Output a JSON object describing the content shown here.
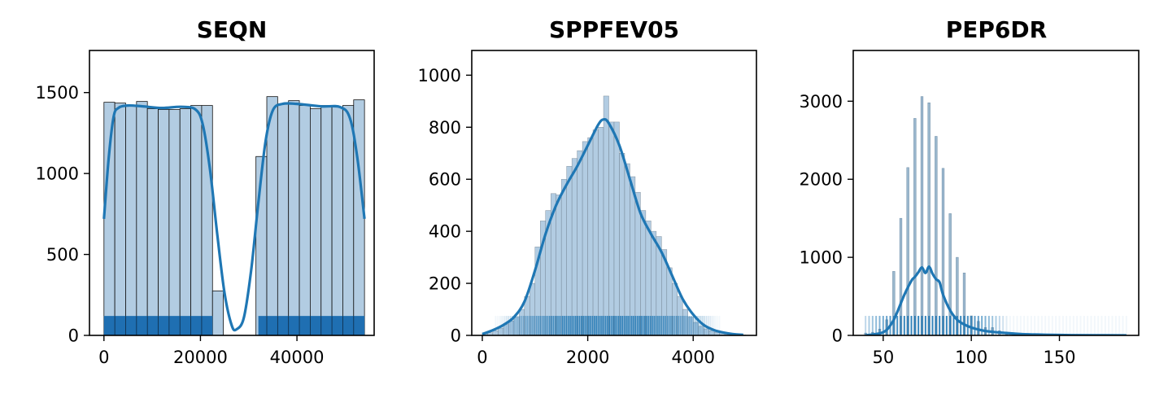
{
  "figure": {
    "panels": [
      {
        "title": "SEQN"
      },
      {
        "title": "SPPFEV05"
      },
      {
        "title": "PEP6DR"
      }
    ]
  },
  "chart_data": [
    {
      "type": "bar",
      "title": "SEQN",
      "subtype": "histogram with kde and rug",
      "xlim": [
        -3000,
        56000
      ],
      "ylim": [
        0,
        1760
      ],
      "x_ticks": [
        0,
        20000,
        40000
      ],
      "y_ticks": [
        0,
        500,
        1000,
        1500
      ],
      "bin_edges": [
        0,
        2250,
        4500,
        6750,
        9000,
        11250,
        13500,
        15750,
        18000,
        20250,
        22500,
        24750,
        27000,
        29250,
        31500,
        33750,
        36000,
        38250,
        40500,
        42750,
        45000,
        47250,
        49500,
        51750,
        54000
      ],
      "counts": [
        1440,
        1435,
        1415,
        1445,
        1400,
        1395,
        1395,
        1400,
        1420,
        1420,
        275,
        0,
        0,
        0,
        1105,
        1475,
        1430,
        1450,
        1420,
        1400,
        1420,
        1410,
        1420,
        1455
      ],
      "kde": {
        "x": [
          0,
          1000,
          2000,
          3000,
          5000,
          8000,
          12000,
          16000,
          19000,
          20500,
          22000,
          23500,
          25000,
          26500,
          27500,
          29000,
          30500,
          32000,
          33500,
          35000,
          37000,
          40000,
          45000,
          49000,
          51000,
          52500,
          54000
        ],
        "y": [
          720,
          1100,
          1350,
          1405,
          1420,
          1415,
          1405,
          1412,
          1395,
          1300,
          1020,
          620,
          260,
          60,
          38,
          110,
          400,
          820,
          1200,
          1390,
          1430,
          1430,
          1415,
          1410,
          1340,
          1100,
          720
        ]
      },
      "rug": {
        "segments": [
          [
            0,
            22500
          ],
          [
            32000,
            54000
          ]
        ],
        "height": 120
      },
      "colors": {
        "bar": "#b2cce2",
        "kde": "#1f77b4",
        "rug": "#1f6fb2"
      }
    },
    {
      "type": "bar",
      "title": "SPPFEV05",
      "subtype": "histogram with kde and rug",
      "xlim": [
        -200,
        5200
      ],
      "ylim": [
        0,
        1095
      ],
      "x_ticks": [
        0,
        2000,
        4000
      ],
      "y_ticks": [
        0,
        200,
        400,
        600,
        800,
        1000
      ],
      "bin_edges": [
        0,
        100,
        200,
        300,
        400,
        500,
        600,
        700,
        800,
        900,
        1000,
        1100,
        1200,
        1300,
        1400,
        1500,
        1600,
        1700,
        1800,
        1900,
        2000,
        2100,
        2200,
        2300,
        2400,
        2500,
        2600,
        2700,
        2800,
        2900,
        3000,
        3100,
        3200,
        3300,
        3400,
        3500,
        3600,
        3700,
        3800,
        3900,
        4000,
        4100,
        4200,
        4300,
        4400,
        4500,
        4600,
        4700,
        4800,
        4900
      ],
      "counts": [
        6,
        10,
        18,
        28,
        42,
        55,
        70,
        100,
        150,
        200,
        340,
        440,
        480,
        545,
        540,
        600,
        650,
        680,
        710,
        745,
        760,
        790,
        800,
        920,
        820,
        820,
        700,
        660,
        610,
        550,
        480,
        440,
        400,
        380,
        330,
        260,
        200,
        150,
        100,
        70,
        50,
        35,
        25,
        18,
        12,
        10,
        6,
        4,
        3,
        2
      ],
      "kde": {
        "x": [
          0,
          200,
          400,
          600,
          800,
          1000,
          1200,
          1400,
          1600,
          1800,
          2000,
          2200,
          2300,
          2400,
          2600,
          2800,
          3000,
          3200,
          3400,
          3600,
          3800,
          4000,
          4200,
          4400,
          4600,
          4800,
          4950
        ],
        "y": [
          5,
          20,
          40,
          70,
          130,
          250,
          390,
          500,
          580,
          650,
          730,
          810,
          830,
          815,
          730,
          600,
          470,
          390,
          320,
          230,
          140,
          80,
          40,
          20,
          10,
          4,
          2
        ]
      },
      "rug": {
        "range": [
          250,
          4500
        ],
        "height": 75
      },
      "colors": {
        "bar": "#b2cce2",
        "kde": "#1f77b4",
        "rug": "#1f77b4"
      }
    },
    {
      "type": "bar",
      "title": "PEP6DR",
      "subtype": "histogram with kde and rug",
      "xlim": [
        33,
        195
      ],
      "ylim": [
        0,
        3650
      ],
      "x_ticks": [
        50,
        100,
        150
      ],
      "y_ticks": [
        0,
        1000,
        2000,
        3000
      ],
      "spikes": [
        {
          "x": 40,
          "v": 30
        },
        {
          "x": 44,
          "v": 40
        },
        {
          "x": 48,
          "v": 80
        },
        {
          "x": 52,
          "v": 200
        },
        {
          "x": 56,
          "v": 820
        },
        {
          "x": 60,
          "v": 1500
        },
        {
          "x": 64,
          "v": 2150
        },
        {
          "x": 68,
          "v": 2780
        },
        {
          "x": 72,
          "v": 3060
        },
        {
          "x": 76,
          "v": 2980
        },
        {
          "x": 80,
          "v": 2550
        },
        {
          "x": 84,
          "v": 2140
        },
        {
          "x": 88,
          "v": 1560
        },
        {
          "x": 92,
          "v": 1000
        },
        {
          "x": 96,
          "v": 800
        },
        {
          "x": 100,
          "v": 250
        },
        {
          "x": 104,
          "v": 180
        },
        {
          "x": 108,
          "v": 100
        },
        {
          "x": 112,
          "v": 100
        },
        {
          "x": 116,
          "v": 60
        },
        {
          "x": 120,
          "v": 40
        },
        {
          "x": 124,
          "v": 25
        },
        {
          "x": 128,
          "v": 15
        },
        {
          "x": 132,
          "v": 10
        },
        {
          "x": 136,
          "v": 8
        },
        {
          "x": 140,
          "v": 5
        }
      ],
      "kde": {
        "x": [
          40,
          50,
          55,
          58,
          62,
          66,
          68,
          70,
          72,
          74,
          76,
          78,
          80,
          82,
          84,
          88,
          92,
          96,
          100,
          105,
          110,
          120,
          130,
          150,
          170,
          188
        ],
        "y": [
          0,
          40,
          160,
          300,
          520,
          700,
          750,
          810,
          870,
          800,
          880,
          790,
          720,
          680,
          520,
          320,
          200,
          140,
          100,
          70,
          50,
          30,
          15,
          5,
          2,
          0
        ]
      },
      "rug": {
        "range": [
          40,
          188
        ],
        "height": 250
      },
      "colors": {
        "bar": "#9ab7cd",
        "kde": "#1f77b4",
        "rug": "#1f77b4"
      }
    }
  ]
}
